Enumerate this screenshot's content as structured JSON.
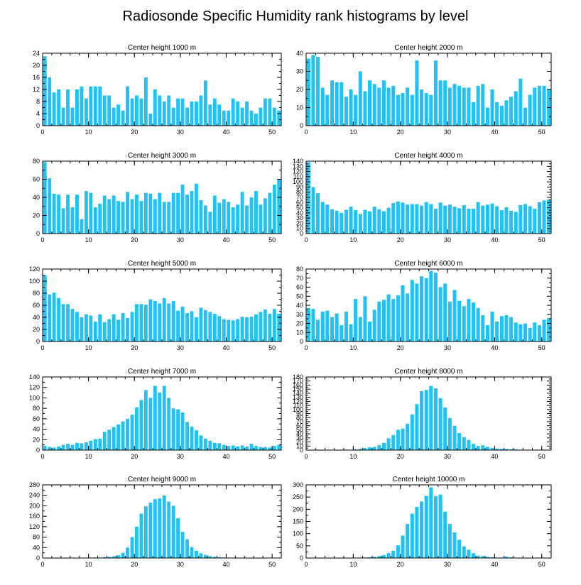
{
  "title": "Radiosonde Specific Humidity rank histograms by level",
  "colors": {
    "bar": "#1ec2f5",
    "axis": "#000000",
    "background": "#ffffff"
  },
  "chart_data": [
    {
      "type": "bar",
      "title": "Center height 1000 m",
      "xlim": [
        0,
        52
      ],
      "ylim": [
        0,
        24
      ],
      "xticks": [
        0,
        10,
        20,
        30,
        40,
        50
      ],
      "xtick_labels": [
        "0",
        "10",
        "20",
        "30",
        "40",
        "50"
      ],
      "yticks": [
        0,
        4,
        8,
        12,
        16,
        20,
        24
      ],
      "ytick_labels": [
        "0",
        "4",
        "8",
        "12",
        "16",
        "20",
        "24"
      ],
      "values": [
        23,
        16,
        11,
        12,
        6,
        12,
        6,
        12,
        13,
        9,
        13,
        13,
        13,
        10,
        10,
        6,
        7,
        5,
        13,
        9,
        10,
        9,
        16,
        4,
        12,
        10,
        8,
        10,
        6,
        9,
        9,
        6,
        8,
        8,
        10,
        15,
        7,
        9,
        7,
        5,
        5,
        9,
        8,
        6,
        8,
        5,
        4,
        6,
        9,
        9,
        6,
        5
      ]
    },
    {
      "type": "bar",
      "title": "Center height 2000 m",
      "xlim": [
        0,
        52
      ],
      "ylim": [
        0,
        40
      ],
      "xticks": [
        0,
        10,
        20,
        30,
        40,
        50
      ],
      "xtick_labels": [
        "0",
        "10",
        "20",
        "30",
        "40",
        "50"
      ],
      "yticks": [
        0,
        10,
        20,
        30,
        40
      ],
      "ytick_labels": [
        "0",
        "10",
        "20",
        "30",
        "40"
      ],
      "values": [
        37,
        39,
        38,
        21,
        17,
        25,
        24,
        24,
        16,
        20,
        17,
        30,
        19,
        25,
        23,
        21,
        25,
        21,
        22,
        17,
        18,
        21,
        17,
        36,
        20,
        18,
        17,
        36,
        25,
        25,
        21,
        23,
        22,
        21,
        21,
        13,
        22,
        23,
        10,
        20,
        13,
        11,
        14,
        16,
        19,
        26,
        10,
        17,
        21,
        22,
        22,
        20
      ]
    },
    {
      "type": "bar",
      "title": "Center height 3000 m",
      "xlim": [
        0,
        52
      ],
      "ylim": [
        0,
        80
      ],
      "xticks": [
        0,
        10,
        20,
        30,
        40,
        50
      ],
      "xtick_labels": [
        "0",
        "10",
        "20",
        "30",
        "40",
        "50"
      ],
      "yticks": [
        0,
        20,
        40,
        60,
        80
      ],
      "ytick_labels": [
        "0",
        "20",
        "40",
        "60",
        "80"
      ],
      "values": [
        79,
        61,
        44,
        43,
        28,
        43,
        29,
        43,
        16,
        47,
        45,
        29,
        33,
        42,
        38,
        42,
        36,
        35,
        46,
        38,
        43,
        36,
        45,
        44,
        38,
        45,
        35,
        35,
        45,
        45,
        54,
        43,
        47,
        55,
        37,
        31,
        24,
        42,
        34,
        38,
        35,
        29,
        32,
        46,
        31,
        40,
        47,
        32,
        39,
        45,
        54,
        60
      ]
    },
    {
      "type": "bar",
      "title": "Center height 4000 m",
      "xlim": [
        0,
        52
      ],
      "ylim": [
        0,
        140
      ],
      "xticks": [
        0,
        10,
        20,
        30,
        40,
        50
      ],
      "xtick_labels": [
        "0",
        "10",
        "20",
        "30",
        "40",
        "50"
      ],
      "yticks": [
        0,
        10,
        20,
        30,
        40,
        50,
        60,
        70,
        80,
        90,
        100,
        110,
        120,
        130,
        140
      ],
      "ytick_labels": [
        "0",
        "10",
        "20",
        "30",
        "40",
        "50",
        "60",
        "70",
        "80",
        "90",
        "100",
        "110",
        "120",
        "130",
        "140"
      ],
      "values": [
        138,
        90,
        78,
        61,
        56,
        47,
        44,
        40,
        46,
        52,
        45,
        38,
        46,
        43,
        52,
        47,
        43,
        50,
        59,
        62,
        60,
        56,
        57,
        57,
        54,
        61,
        57,
        48,
        60,
        54,
        56,
        52,
        49,
        55,
        48,
        48,
        61,
        54,
        56,
        58,
        53,
        45,
        51,
        44,
        42,
        55,
        57,
        53,
        48,
        61,
        64,
        66
      ]
    },
    {
      "type": "bar",
      "title": "Center height 5000 m",
      "xlim": [
        0,
        52
      ],
      "ylim": [
        0,
        120
      ],
      "xticks": [
        0,
        10,
        20,
        30,
        40,
        50
      ],
      "xtick_labels": [
        "0",
        "10",
        "20",
        "30",
        "40",
        "50"
      ],
      "yticks": [
        0,
        20,
        40,
        60,
        80,
        100,
        120
      ],
      "ytick_labels": [
        "0",
        "20",
        "40",
        "60",
        "80",
        "100",
        "120"
      ],
      "values": [
        110,
        78,
        81,
        72,
        62,
        62,
        54,
        49,
        40,
        45,
        43,
        33,
        45,
        32,
        37,
        45,
        36,
        47,
        39,
        49,
        62,
        62,
        61,
        70,
        67,
        63,
        72,
        63,
        67,
        51,
        58,
        47,
        50,
        40,
        56,
        52,
        49,
        46,
        42,
        37,
        36,
        35,
        37,
        41,
        40,
        41,
        45,
        49,
        53,
        46,
        54,
        46
      ]
    },
    {
      "type": "bar",
      "title": "Center height 6000 m",
      "xlim": [
        0,
        52
      ],
      "ylim": [
        0,
        80
      ],
      "xticks": [
        0,
        10,
        20,
        30,
        40,
        50
      ],
      "xtick_labels": [
        "0",
        "10",
        "20",
        "30",
        "40",
        "50"
      ],
      "yticks": [
        0,
        10,
        20,
        30,
        40,
        50,
        60,
        70,
        80
      ],
      "ytick_labels": [
        "0",
        "10",
        "20",
        "30",
        "40",
        "50",
        "60",
        "70",
        "80"
      ],
      "values": [
        37,
        36,
        24,
        33,
        34,
        27,
        31,
        18,
        33,
        19,
        47,
        27,
        50,
        22,
        35,
        44,
        46,
        52,
        47,
        51,
        62,
        53,
        68,
        64,
        72,
        70,
        78,
        76,
        60,
        64,
        44,
        57,
        45,
        39,
        47,
        43,
        37,
        29,
        18,
        33,
        22,
        28,
        29,
        27,
        21,
        19,
        20,
        15,
        21,
        18,
        24,
        26
      ]
    },
    {
      "type": "bar",
      "title": "Center height 7000 m",
      "xlim": [
        0,
        52
      ],
      "ylim": [
        0,
        140
      ],
      "xticks": [
        0,
        10,
        20,
        30,
        40,
        50
      ],
      "xtick_labels": [
        "0",
        "10",
        "20",
        "30",
        "40",
        "50"
      ],
      "yticks": [
        0,
        20,
        40,
        60,
        80,
        100,
        120,
        140
      ],
      "ytick_labels": [
        "0",
        "20",
        "40",
        "60",
        "80",
        "100",
        "120",
        "140"
      ],
      "values": [
        8,
        6,
        5,
        7,
        10,
        12,
        10,
        14,
        13,
        15,
        18,
        21,
        22,
        35,
        39,
        44,
        49,
        55,
        60,
        68,
        82,
        96,
        115,
        100,
        123,
        110,
        123,
        100,
        80,
        78,
        72,
        54,
        45,
        38,
        28,
        22,
        18,
        14,
        13,
        10,
        8,
        9,
        7,
        9,
        7,
        12,
        8,
        6,
        6,
        5,
        8,
        10
      ]
    },
    {
      "type": "bar",
      "title": "Center height 8000 m",
      "xlim": [
        0,
        52
      ],
      "ylim": [
        0,
        180
      ],
      "xticks": [
        0,
        10,
        20,
        30,
        40,
        50
      ],
      "xtick_labels": [
        "0",
        "10",
        "20",
        "30",
        "40",
        "50"
      ],
      "yticks": [
        0,
        10,
        20,
        30,
        40,
        50,
        60,
        70,
        80,
        90,
        100,
        110,
        120,
        130,
        140,
        150,
        160,
        170,
        180
      ],
      "ytick_labels": [
        "0",
        "10",
        "20",
        "30",
        "40",
        "50",
        "60",
        "70",
        "80",
        "90",
        "100",
        "110",
        "120",
        "130",
        "140",
        "150",
        "160",
        "170",
        "180"
      ],
      "values": [
        1,
        1,
        1,
        1,
        1,
        1,
        1,
        1,
        1,
        1,
        2,
        3,
        5,
        7,
        8,
        12,
        18,
        29,
        37,
        50,
        53,
        65,
        88,
        113,
        145,
        148,
        158,
        152,
        128,
        105,
        79,
        60,
        42,
        32,
        25,
        15,
        10,
        12,
        8,
        5,
        4,
        3,
        3,
        2,
        2,
        1,
        1,
        1,
        1,
        1,
        1,
        1
      ]
    },
    {
      "type": "bar",
      "title": "Center height 9000 m",
      "xlim": [
        0,
        52
      ],
      "ylim": [
        0,
        280
      ],
      "xticks": [
        0,
        10,
        20,
        30,
        40,
        50
      ],
      "xtick_labels": [
        "0",
        "10",
        "20",
        "30",
        "40",
        "50"
      ],
      "yticks": [
        0,
        40,
        80,
        120,
        160,
        200,
        240,
        280
      ],
      "ytick_labels": [
        "0",
        "40",
        "80",
        "120",
        "160",
        "200",
        "240",
        "280"
      ],
      "values": [
        1,
        1,
        1,
        1,
        1,
        1,
        1,
        1,
        1,
        1,
        1,
        2,
        2,
        3,
        5,
        7,
        11,
        20,
        40,
        80,
        120,
        170,
        198,
        212,
        225,
        228,
        240,
        216,
        200,
        152,
        100,
        72,
        42,
        28,
        18,
        12,
        7,
        5,
        3,
        2,
        1,
        1,
        1,
        1,
        1,
        1,
        1,
        1,
        1,
        1,
        1,
        1
      ]
    },
    {
      "type": "bar",
      "title": "Center height 10000 m",
      "xlim": [
        0,
        52
      ],
      "ylim": [
        0,
        300
      ],
      "xticks": [
        0,
        10,
        20,
        30,
        40,
        50
      ],
      "xtick_labels": [
        "0",
        "10",
        "20",
        "30",
        "40",
        "50"
      ],
      "yticks": [
        0,
        50,
        100,
        150,
        200,
        250,
        300
      ],
      "ytick_labels": [
        "0",
        "50",
        "100",
        "150",
        "200",
        "250",
        "300"
      ],
      "values": [
        1,
        1,
        1,
        1,
        1,
        1,
        1,
        1,
        1,
        1,
        1,
        2,
        2,
        3,
        5,
        8,
        12,
        20,
        30,
        52,
        92,
        140,
        182,
        210,
        232,
        255,
        290,
        254,
        260,
        190,
        140,
        105,
        75,
        48,
        34,
        20,
        10,
        8,
        5,
        3,
        2,
        2,
        6,
        3,
        1,
        1,
        1,
        1,
        1,
        1,
        1,
        1
      ]
    }
  ]
}
